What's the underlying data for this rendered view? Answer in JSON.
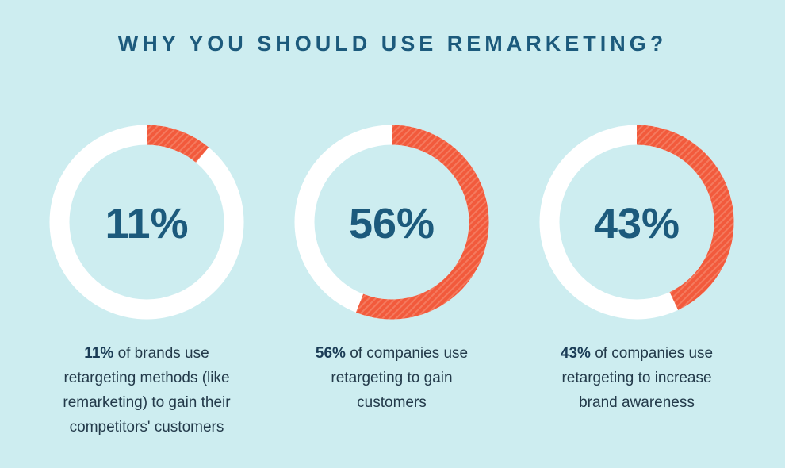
{
  "title": "WHY YOU SHOULD USE REMARKETING?",
  "chart_data": [
    {
      "type": "donut",
      "values": [
        11
      ],
      "value_labels": [
        "11%"
      ],
      "ylim": [
        0,
        100
      ],
      "color": "#f25a3c",
      "caption_lead": "11%",
      "caption": "of brands use retargeting methods (like remarketing) to gain their competitors' customers"
    },
    {
      "type": "donut",
      "values": [
        56
      ],
      "value_labels": [
        "56%"
      ],
      "ylim": [
        0,
        100
      ],
      "color": "#f25a3c",
      "caption_lead": "56%",
      "caption": "of companies use retargeting to gain customers"
    },
    {
      "type": "donut",
      "values": [
        43
      ],
      "value_labels": [
        "43%"
      ],
      "ylim": [
        0,
        100
      ],
      "color": "#f25a3c",
      "caption_lead": "43%",
      "caption": "of companies use retargeting to increase brand awareness"
    }
  ]
}
